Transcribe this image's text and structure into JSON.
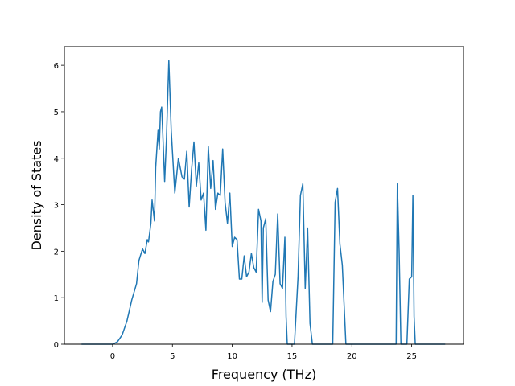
{
  "chart_data": {
    "type": "line",
    "title": "",
    "xlabel": "Frequency (THz)",
    "ylabel": "Density of States",
    "xlim": [
      -4.03,
      29.33
    ],
    "ylim": [
      0,
      6.4
    ],
    "xticks": [
      0,
      5,
      10,
      15,
      20,
      25
    ],
    "yticks": [
      0,
      1,
      2,
      3,
      4,
      5,
      6
    ],
    "xtick_labels": [
      "0",
      "5",
      "10",
      "15",
      "20",
      "25"
    ],
    "ytick_labels": [
      "0",
      "1",
      "2",
      "3",
      "4",
      "5",
      "6"
    ],
    "grid": false,
    "legend": "none",
    "series": [
      {
        "color": "#1f77b4",
        "x": [
          -2.6,
          0.0,
          0.4,
          0.8,
          1.2,
          1.6,
          2.0,
          2.2,
          2.5,
          2.7,
          2.9,
          3.0,
          3.2,
          3.3,
          3.5,
          3.6,
          3.8,
          3.9,
          4.0,
          4.1,
          4.2,
          4.35,
          4.5,
          4.7,
          4.9,
          5.2,
          5.5,
          5.8,
          6.0,
          6.2,
          6.4,
          6.6,
          6.8,
          7.0,
          7.2,
          7.4,
          7.6,
          7.8,
          8.0,
          8.2,
          8.4,
          8.6,
          8.8,
          9.0,
          9.2,
          9.4,
          9.6,
          9.8,
          10.0,
          10.2,
          10.4,
          10.6,
          10.8,
          11.0,
          11.2,
          11.4,
          11.6,
          11.8,
          12.0,
          12.2,
          12.4,
          12.5,
          12.6,
          12.8,
          13.0,
          13.2,
          13.4,
          13.6,
          13.8,
          14.0,
          14.2,
          14.4,
          14.5,
          14.6,
          14.7,
          14.8,
          15.0,
          15.2,
          15.5,
          15.7,
          15.9,
          16.1,
          16.3,
          16.5,
          16.7,
          16.8,
          17.0,
          18.0,
          18.4,
          18.6,
          18.8,
          19.0,
          19.2,
          19.5,
          19.7,
          20.0,
          22.0,
          23.5,
          23.7,
          23.8,
          23.95,
          24.1,
          24.3,
          24.6,
          24.8,
          25.0,
          25.1,
          25.2,
          25.3,
          25.4,
          27.8
        ],
        "y": [
          0,
          0,
          0.05,
          0.2,
          0.5,
          0.95,
          1.3,
          1.8,
          2.05,
          1.95,
          2.25,
          2.2,
          2.6,
          3.1,
          2.65,
          3.8,
          4.6,
          4.2,
          5.0,
          5.1,
          4.5,
          3.5,
          4.4,
          6.1,
          4.6,
          3.25,
          4.0,
          3.6,
          3.55,
          4.15,
          2.95,
          3.75,
          4.35,
          3.4,
          3.9,
          3.1,
          3.25,
          2.45,
          4.25,
          3.35,
          3.95,
          2.9,
          3.25,
          3.2,
          4.2,
          3.05,
          2.6,
          3.25,
          2.1,
          2.3,
          2.25,
          1.4,
          1.4,
          1.9,
          1.45,
          1.55,
          1.95,
          1.65,
          1.55,
          2.9,
          2.65,
          0.9,
          2.5,
          2.7,
          0.95,
          0.7,
          1.35,
          1.5,
          2.8,
          1.3,
          1.2,
          2.3,
          0.6,
          0.0,
          0.0,
          0.0,
          0.0,
          0.0,
          1.45,
          3.2,
          3.45,
          1.2,
          2.5,
          0.45,
          0.0,
          0.0,
          0.0,
          0.0,
          0.0,
          3.05,
          3.35,
          2.15,
          1.7,
          0.0,
          0.0,
          0.0,
          0.0,
          0.0,
          0.0,
          3.45,
          2.0,
          0.0,
          0.0,
          0.0,
          1.4,
          1.45,
          3.2,
          0.6,
          0.0,
          0.0,
          0.0
        ]
      }
    ]
  }
}
